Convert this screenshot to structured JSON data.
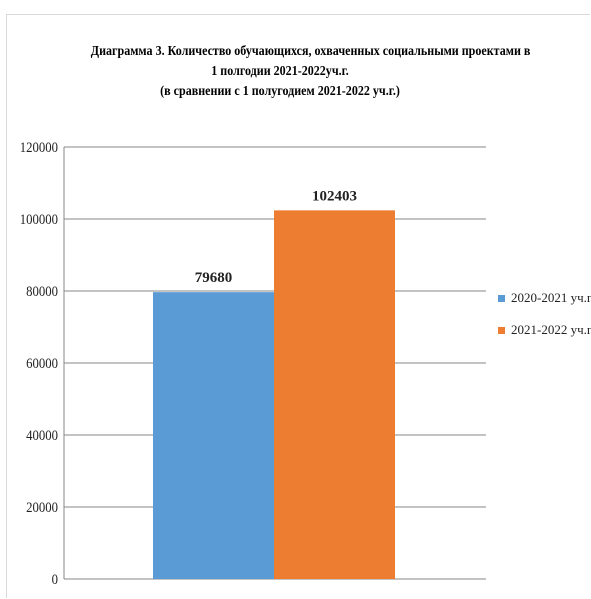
{
  "chart_data": {
    "type": "bar",
    "title_lines": [
      "Диаграмма 3. Количество обучающихся, охваченных социальными проектами в",
      "1 полгодии 2021-2022уч.г.",
      "(в сравнении с 1 полугодием 2021-2022 уч.г.)"
    ],
    "categories": [
      ""
    ],
    "series": [
      {
        "name": "2020-2021 уч.г.",
        "values": [
          79680
        ],
        "label": "79680",
        "color": "#5b9bd5"
      },
      {
        "name": "2021-2022 уч.г.",
        "values": [
          102403
        ],
        "label": "102403",
        "color": "#ed7d31"
      }
    ],
    "ylim": [
      0,
      120000
    ],
    "yticks": [
      "0",
      "20000",
      "40000",
      "60000",
      "80000",
      "100000",
      "120000"
    ],
    "grid": true,
    "legend_position": "right"
  }
}
